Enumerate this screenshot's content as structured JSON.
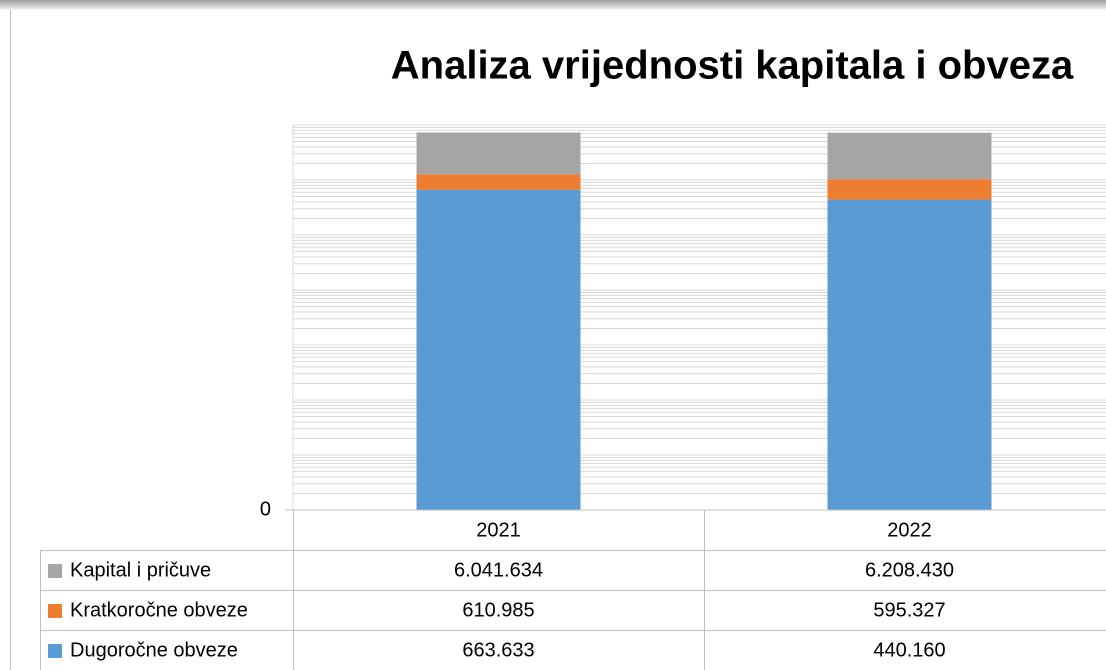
{
  "chart_data": {
    "type": "bar",
    "stacked": true,
    "log_scale": true,
    "title": "Analiza vrijednosti kapitala i obveza",
    "categories": [
      "2021",
      "2022"
    ],
    "series": [
      {
        "name": "Kapital i pričuve",
        "color": "#a5a5a5",
        "values": [
          6041634,
          6208430
        ],
        "value_labels": [
          "6.041.634",
          "6.208.430"
        ]
      },
      {
        "name": "Kratkoročne obveze",
        "color": "#ed7d31",
        "values": [
          610985,
          595327
        ],
        "value_labels": [
          "610.985",
          "595.327"
        ]
      },
      {
        "name": "Dugoročne obveze",
        "color": "#5b9bd5",
        "values": [
          663633,
          440160
        ],
        "value_labels": [
          "663.633",
          "440.160"
        ]
      }
    ],
    "ylim": [
      1,
      10000000
    ],
    "yticks": [
      {
        "value": 1,
        "label": "0"
      }
    ],
    "grid": true
  }
}
